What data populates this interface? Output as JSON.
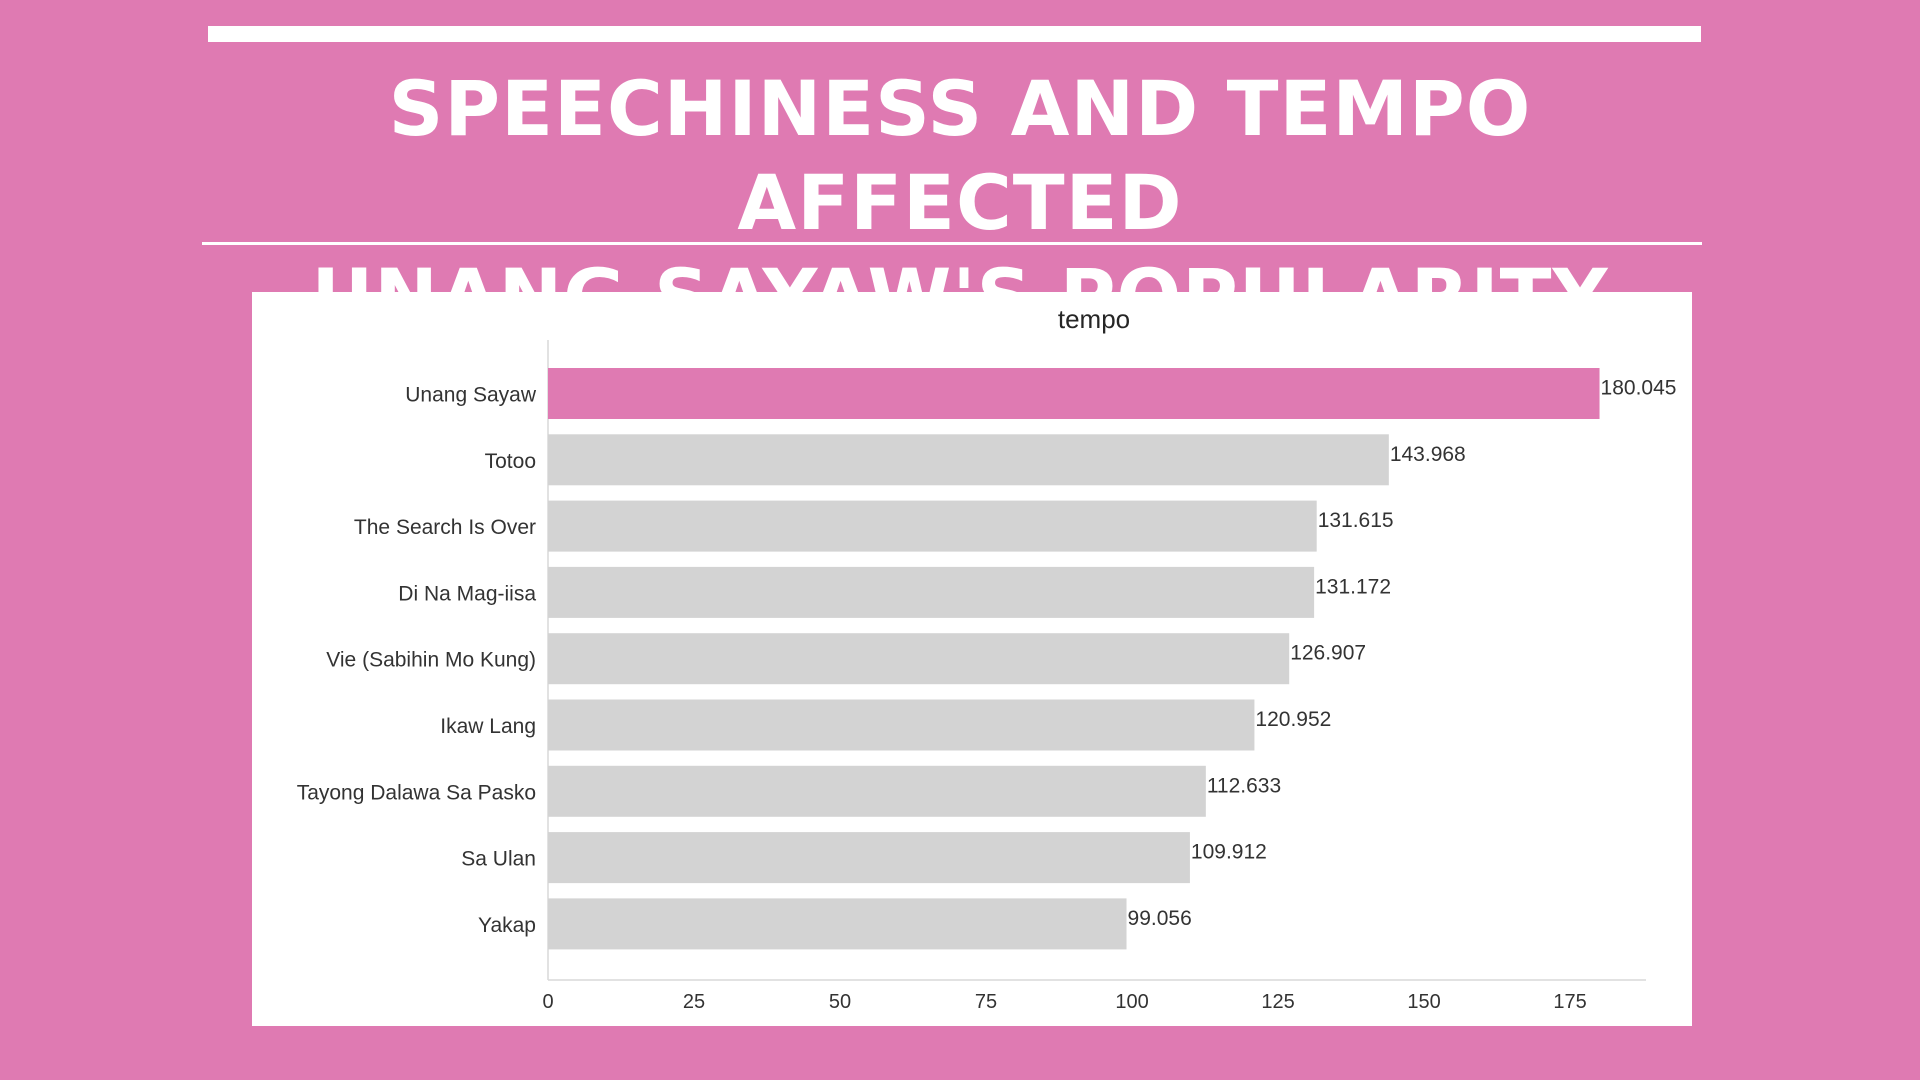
{
  "page": {
    "background_color": "#df7ab2",
    "headline_lines": [
      "SPEECHINESS AND TEMPO AFFECTED",
      "UNANG SAYAW'S POPULARITY"
    ]
  },
  "chart_data": {
    "type": "bar",
    "orientation": "horizontal",
    "title": "tempo",
    "xlabel": "",
    "ylabel": "",
    "categories": [
      "Unang Sayaw",
      "Totoo",
      "The Search Is Over",
      "Di Na Mag-iisa",
      "Vie (Sabihin Mo Kung)",
      "Ikaw Lang",
      "Tayong Dalawa Sa Pasko",
      "Sa Ulan",
      "Yakap"
    ],
    "values": [
      180.045,
      143.968,
      131.615,
      131.172,
      126.907,
      120.952,
      112.633,
      109.912,
      99.056
    ],
    "value_labels": [
      "180.045",
      "143.968",
      "131.615",
      "131.172",
      "126.907",
      "120.952",
      "112.633",
      "109.912",
      "99.056"
    ],
    "xlim": [
      0,
      188
    ],
    "xticks": [
      0,
      25,
      50,
      75,
      100,
      125,
      150,
      175
    ],
    "highlight_category": "Unang Sayaw",
    "highlight_color": "#df7ab2",
    "bar_color": "#d3d3d3",
    "grid": false,
    "legend": "none"
  }
}
